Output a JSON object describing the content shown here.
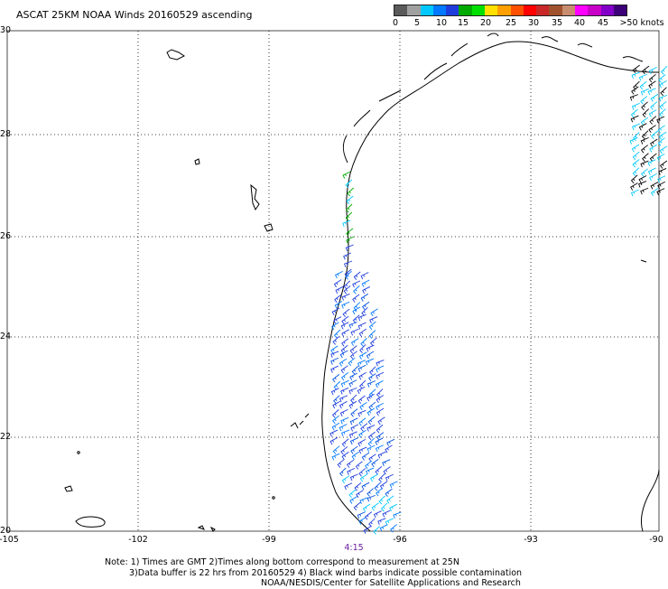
{
  "title": "ASCAT 25KM NOAA Winds 20160529 ascending",
  "colorbar": {
    "colors": [
      "#5a5a5a",
      "#a0a0a0",
      "#00c8ff",
      "#0078ff",
      "#1e3cdc",
      "#00aa00",
      "#00e000",
      "#ffe000",
      "#ffa000",
      "#ff5000",
      "#ff0000",
      "#c82828",
      "#a0522d",
      "#c88c6e",
      "#ff00ff",
      "#c800c8",
      "#8200c8",
      "#3c0078"
    ],
    "labels": [
      "0",
      "5",
      "10",
      "15",
      "20",
      "25",
      "30",
      "35",
      "40",
      "45",
      ">50 knots"
    ]
  },
  "axes": {
    "y_labels": [
      "30",
      "28",
      "26",
      "24",
      "22",
      "20"
    ],
    "x_labels": [
      "-105",
      "-102",
      "-99",
      "-96",
      "-93",
      "-90"
    ],
    "x_range": [
      -105,
      -90
    ],
    "y_range": [
      20,
      30
    ],
    "grid": "dotted"
  },
  "time_label": "4:15",
  "notes": [
    "Note: 1) Times are GMT 2)Times along bottom correspond to measurement at 25N",
    "3)Data buffer is 22 hrs from 20160529 4) Black wind barbs indicate possible contamination",
    "NOAA/NESDIS/Center for Satellite Applications and Research"
  ]
}
